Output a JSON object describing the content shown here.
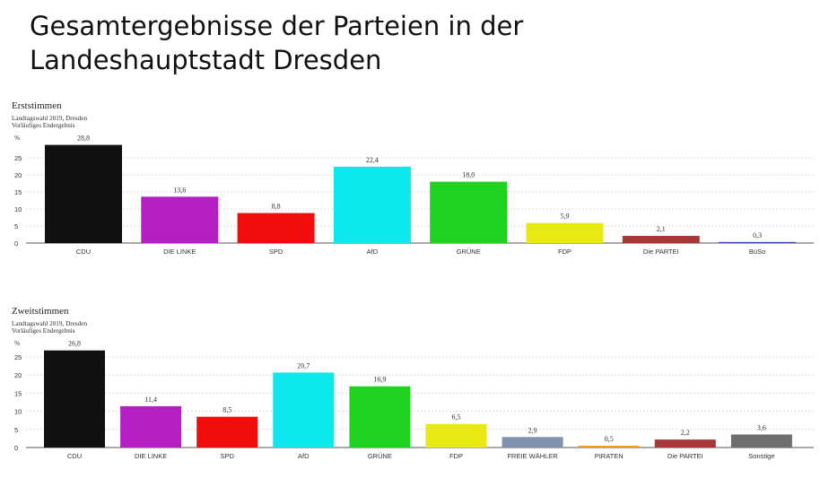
{
  "page_title": {
    "line1": "Gesamtergebnisse der Parteien in der",
    "line2": "Landeshauptstadt Dresden"
  },
  "chart_data": [
    {
      "type": "bar",
      "title": "Erststimmen",
      "subtitle": "Landtagswahl 2019, Dresden",
      "subtitle2": "Vorläufiges Endergebnis",
      "ylabel": "%",
      "ylim": [
        0,
        30
      ],
      "yticks": [
        0,
        5,
        10,
        15,
        20,
        25
      ],
      "grid": true,
      "categories": [
        "CDU",
        "DIE LINKE",
        "SPD",
        "AfD",
        "GRÜNE",
        "FDP",
        "Die PARTEI",
        "BüSo"
      ],
      "values": [
        28.8,
        13.6,
        8.8,
        22.4,
        18.0,
        5.9,
        2.1,
        0.3
      ],
      "value_labels": [
        "28,8",
        "13,6",
        "8,8",
        "22,4",
        "18,0",
        "5,9",
        "2,1",
        "0,3"
      ],
      "colors": [
        "#111111",
        "#b31fc2",
        "#f20c0c",
        "#0de8ef",
        "#1fd21f",
        "#e8e812",
        "#a83737",
        "#1f4fa8"
      ]
    },
    {
      "type": "bar",
      "title": "Zweitstimmen",
      "subtitle": "Landtagswahl 2019, Dresden",
      "subtitle2": "Vorläufiges Endergebnis",
      "ylabel": "%",
      "ylim": [
        0,
        30
      ],
      "yticks": [
        0,
        5,
        10,
        15,
        20,
        25
      ],
      "grid": true,
      "categories": [
        "CDU",
        "DIE LINKE",
        "SPD",
        "AfD",
        "GRÜNE",
        "FDP",
        "FREIE WÄHLER",
        "PIRATEN",
        "Die PARTEI",
        "Sonstige"
      ],
      "values": [
        26.8,
        11.4,
        8.5,
        20.7,
        16.9,
        6.5,
        2.9,
        0.5,
        2.2,
        3.6
      ],
      "value_labels": [
        "26,8",
        "11,4",
        "8,5",
        "20,7",
        "16,9",
        "6,5",
        "2,9",
        "0,5",
        "2,2",
        "3,6"
      ],
      "colors": [
        "#111111",
        "#b31fc2",
        "#f20c0c",
        "#0de8ef",
        "#1fd21f",
        "#e8e812",
        "#7f93ac",
        "#f29a1f",
        "#a83737",
        "#6e6e6e"
      ]
    }
  ]
}
